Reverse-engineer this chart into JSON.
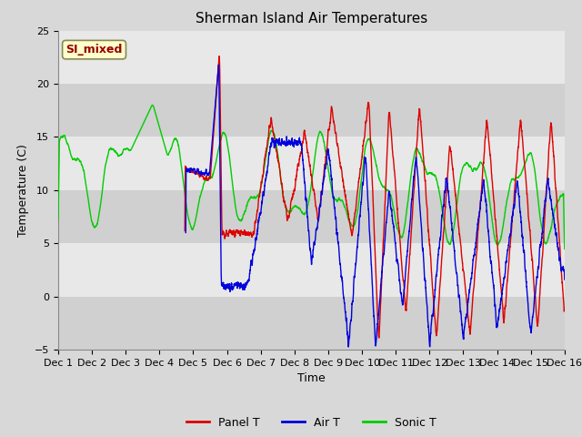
{
  "title": "Sherman Island Air Temperatures",
  "xlabel": "Time",
  "ylabel": "Temperature (C)",
  "ylim": [
    -5,
    25
  ],
  "yticks": [
    -5,
    0,
    5,
    10,
    15,
    20,
    25
  ],
  "xtick_labels": [
    "Dec 1",
    "Dec 2",
    "Dec 3",
    "Dec 4",
    "Dec 5",
    "Dec 6",
    "Dec 7",
    "Dec 8",
    "Dec 9",
    "Dec 10",
    "Dec 11",
    "Dec 12",
    "Dec 13",
    "Dec 14",
    "Dec 15",
    "Dec 16"
  ],
  "line_colors": {
    "panel": "#dd0000",
    "air": "#0000dd",
    "sonic": "#00cc00"
  },
  "line_widths": {
    "panel": 1.0,
    "air": 1.0,
    "sonic": 1.0
  },
  "bg_color": "#d8d8d8",
  "plot_bg_color": "#d8d8d8",
  "band_light": "#e8e8e8",
  "band_dark": "#d0d0d0",
  "legend_labels": [
    "Panel T",
    "Air T",
    "Sonic T"
  ],
  "annotation_text": "SI_mixed",
  "annotation_color": "#990000",
  "annotation_bg": "#ffffcc",
  "grid_color": "#bbbbbb",
  "title_fontsize": 11
}
